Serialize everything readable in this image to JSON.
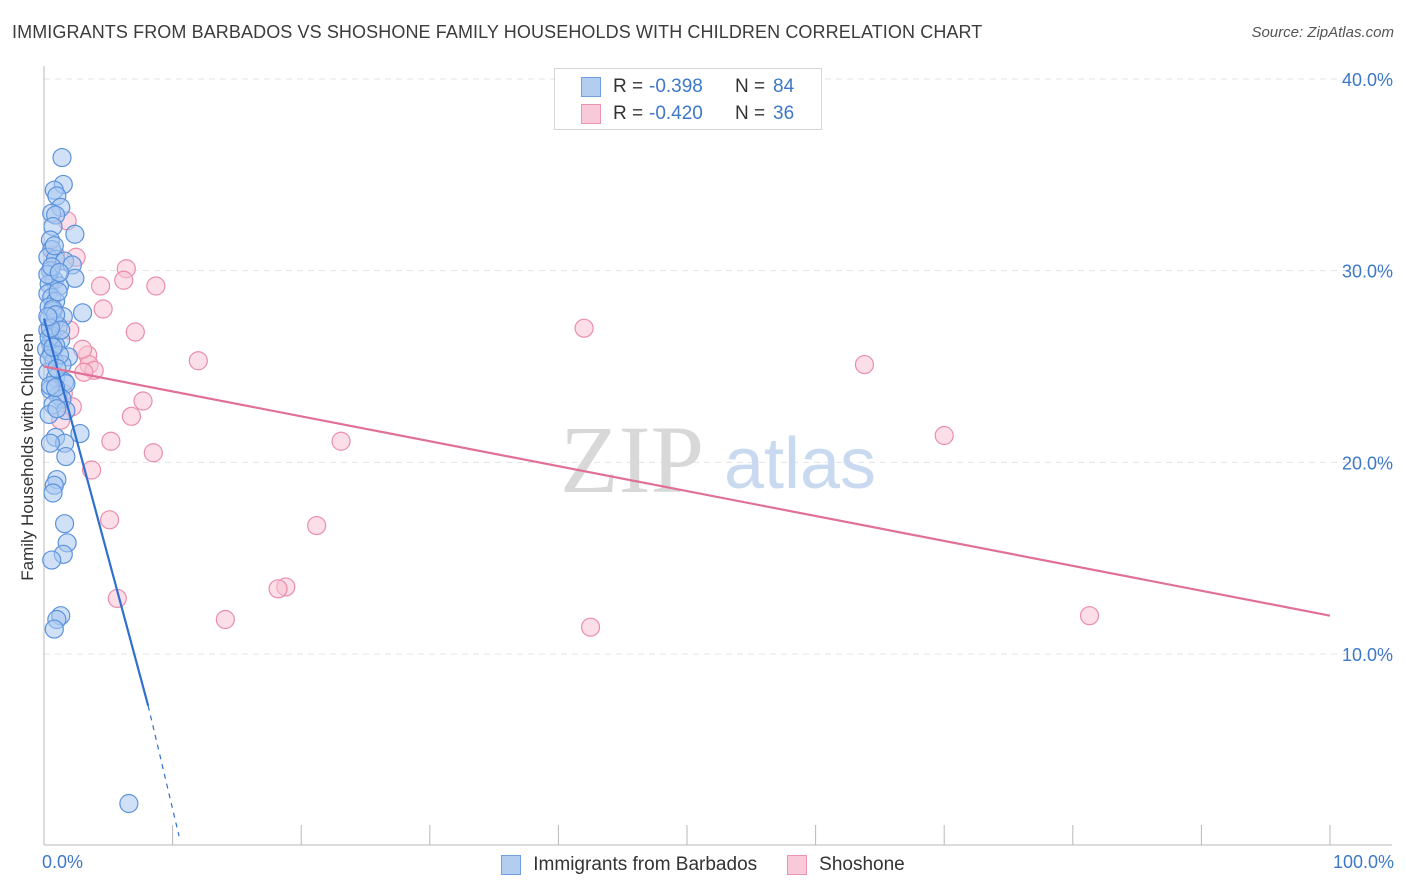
{
  "header": {
    "title": "IMMIGRANTS FROM BARBADOS VS SHOSHONE FAMILY HOUSEHOLDS WITH CHILDREN CORRELATION CHART",
    "source": "Source: ZipAtlas.com"
  },
  "legend": {
    "series1": {
      "r_label": "R =",
      "r_value": "-0.398",
      "n_label": "N =",
      "n_value": "84"
    },
    "series2": {
      "r_label": "R =",
      "r_value": "-0.420",
      "n_label": "N =",
      "n_value": "36"
    }
  },
  "colors": {
    "blue_fill": "#aac8f0",
    "blue_stroke": "#5b92dc",
    "blue_line": "#2f6fd0",
    "pink_fill": "#f7c3d3",
    "pink_stroke": "#ea8dab",
    "pink_line": "#e07098",
    "grid": "#e3e3e3",
    "axis": "#b8b8b8",
    "tick_label": "#3d78c9"
  },
  "watermark": {
    "zip": "ZIP",
    "atlas": "atlas"
  },
  "chart_data": {
    "type": "scatter",
    "title": "IMMIGRANTS FROM BARBADOS VS SHOSHONE FAMILY HOUSEHOLDS WITH CHILDREN CORRELATION CHART",
    "xlabel": "",
    "ylabel": "Family Households with Children",
    "xlim": [
      0,
      100
    ],
    "ylim": [
      0,
      40.5
    ],
    "x_tick_labels": [
      "0.0%",
      "100.0%"
    ],
    "y_ticks": [
      10,
      20,
      30,
      40
    ],
    "y_tick_labels": [
      "10.0%",
      "20.0%",
      "30.0%",
      "40.0%"
    ],
    "grid": true,
    "legend_position": "bottom-center",
    "series": [
      {
        "name": "Immigrants from Barbados",
        "r": -0.398,
        "n": 84,
        "trend": {
          "x0": 0,
          "y0": 27.5,
          "x1": 8.1,
          "y1": 7.3,
          "dash_to_x": 10.5,
          "dash_to_y": 0.5
        },
        "points": [
          [
            1.4,
            35.9
          ],
          [
            1.5,
            34.5
          ],
          [
            0.8,
            34.2
          ],
          [
            1.0,
            33.9
          ],
          [
            1.3,
            33.3
          ],
          [
            0.6,
            33.0
          ],
          [
            0.9,
            32.9
          ],
          [
            0.7,
            32.3
          ],
          [
            2.4,
            31.9
          ],
          [
            0.5,
            31.6
          ],
          [
            0.6,
            31.1
          ],
          [
            0.3,
            30.7
          ],
          [
            0.9,
            30.6
          ],
          [
            1.6,
            30.5
          ],
          [
            2.2,
            30.3
          ],
          [
            0.5,
            30.0
          ],
          [
            2.4,
            29.6
          ],
          [
            0.8,
            29.5
          ],
          [
            0.4,
            29.3
          ],
          [
            1.2,
            29.2
          ],
          [
            0.3,
            28.8
          ],
          [
            0.6,
            28.6
          ],
          [
            0.9,
            28.4
          ],
          [
            0.4,
            28.1
          ],
          [
            0.7,
            27.9
          ],
          [
            3.0,
            27.8
          ],
          [
            1.5,
            27.6
          ],
          [
            0.4,
            27.5
          ],
          [
            0.8,
            27.3
          ],
          [
            1.1,
            27.1
          ],
          [
            0.3,
            26.9
          ],
          [
            0.6,
            26.6
          ],
          [
            1.3,
            26.4
          ],
          [
            0.5,
            26.2
          ],
          [
            0.9,
            26.1
          ],
          [
            0.2,
            25.9
          ],
          [
            0.6,
            25.7
          ],
          [
            1.9,
            25.5
          ],
          [
            0.8,
            25.3
          ],
          [
            1.4,
            25.1
          ],
          [
            0.3,
            24.7
          ],
          [
            0.9,
            24.4
          ],
          [
            1.6,
            24.2
          ],
          [
            1.7,
            24.1
          ],
          [
            0.5,
            23.8
          ],
          [
            1.1,
            23.5
          ],
          [
            1.4,
            23.3
          ],
          [
            0.7,
            23.0
          ],
          [
            1.7,
            22.7
          ],
          [
            0.4,
            22.5
          ],
          [
            2.8,
            21.5
          ],
          [
            0.9,
            21.3
          ],
          [
            1.6,
            21.0
          ],
          [
            0.5,
            21.0
          ],
          [
            1.7,
            20.3
          ],
          [
            1.0,
            19.1
          ],
          [
            0.8,
            18.8
          ],
          [
            0.7,
            18.4
          ],
          [
            1.6,
            16.8
          ],
          [
            1.8,
            15.8
          ],
          [
            1.5,
            15.2
          ],
          [
            0.6,
            14.9
          ],
          [
            1.3,
            12.0
          ],
          [
            1.0,
            11.8
          ],
          [
            0.8,
            11.3
          ],
          [
            6.6,
            2.2
          ],
          [
            0.4,
            26.5
          ],
          [
            0.7,
            28.0
          ],
          [
            1.2,
            25.6
          ],
          [
            0.5,
            24.0
          ],
          [
            0.9,
            27.7
          ],
          [
            0.3,
            29.8
          ],
          [
            1.0,
            22.8
          ],
          [
            0.6,
            30.2
          ],
          [
            1.3,
            26.9
          ],
          [
            0.4,
            25.4
          ],
          [
            0.8,
            31.3
          ],
          [
            1.1,
            28.9
          ],
          [
            0.5,
            27.0
          ],
          [
            0.9,
            23.9
          ],
          [
            1.2,
            29.9
          ],
          [
            0.7,
            26.0
          ],
          [
            0.3,
            27.6
          ],
          [
            1.0,
            24.9
          ]
        ]
      },
      {
        "name": "Shoshone",
        "r": -0.42,
        "n": 36,
        "trend": {
          "x0": 0,
          "y0": 25.0,
          "x1": 100,
          "y1": 12.0
        },
        "points": [
          [
            1.8,
            32.6
          ],
          [
            4.4,
            29.2
          ],
          [
            6.4,
            30.1
          ],
          [
            8.7,
            29.2
          ],
          [
            2.5,
            30.7
          ],
          [
            6.2,
            29.5
          ],
          [
            4.6,
            28.0
          ],
          [
            7.1,
            26.8
          ],
          [
            3.4,
            25.6
          ],
          [
            12.0,
            25.3
          ],
          [
            3.5,
            25.1
          ],
          [
            3.9,
            24.8
          ],
          [
            3.1,
            24.7
          ],
          [
            1.5,
            23.6
          ],
          [
            7.7,
            23.2
          ],
          [
            2.2,
            22.9
          ],
          [
            6.8,
            22.4
          ],
          [
            1.3,
            22.2
          ],
          [
            5.2,
            21.1
          ],
          [
            23.1,
            21.1
          ],
          [
            8.5,
            20.5
          ],
          [
            3.7,
            19.6
          ],
          [
            5.1,
            17.0
          ],
          [
            21.2,
            16.7
          ],
          [
            18.8,
            13.5
          ],
          [
            18.2,
            13.4
          ],
          [
            5.7,
            12.9
          ],
          [
            14.1,
            11.8
          ],
          [
            42.0,
            27.0
          ],
          [
            63.8,
            25.1
          ],
          [
            70.0,
            21.4
          ],
          [
            81.3,
            12.0
          ],
          [
            42.5,
            11.4
          ],
          [
            0.9,
            30.8
          ],
          [
            2.0,
            26.9
          ],
          [
            3.0,
            25.9
          ]
        ]
      }
    ]
  },
  "labels": {
    "y_title": "Family Households with Children",
    "x_min": "0.0%",
    "x_max": "100.0%",
    "series1_name": "Immigrants from Barbados",
    "series2_name": "Shoshone"
  }
}
